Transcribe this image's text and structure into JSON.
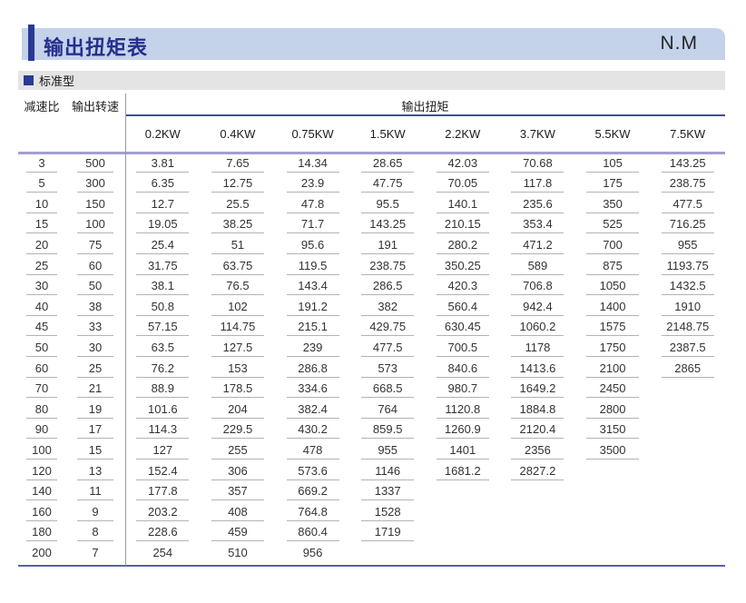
{
  "header": {
    "title": "输出扭矩表",
    "unit": "N.M"
  },
  "section": {
    "marker": "square-bullet-icon",
    "label": "标准型"
  },
  "colors": {
    "title_bar_bg": "#c4d2ea",
    "accent_navy": "#2b3a94",
    "section_bg": "#e4e4e4",
    "torque_rule": "#3d4da1",
    "header_border": "#a0a0d0",
    "cell_underline": "#b3b3b3",
    "table_bottom_border": "#5b60b0"
  },
  "table": {
    "col_ratio": "减速比",
    "col_speed": "输出转速",
    "torque_header": "输出扭矩",
    "power_columns": [
      "0.2KW",
      "0.4KW",
      "0.75KW",
      "1.5KW",
      "2.2KW",
      "3.7KW",
      "5.5KW",
      "7.5KW"
    ],
    "rows": [
      {
        "ratio": "3",
        "speed": "500",
        "torques": [
          "3.81",
          "7.65",
          "14.34",
          "28.65",
          "42.03",
          "70.68",
          "105",
          "143.25"
        ]
      },
      {
        "ratio": "5",
        "speed": "300",
        "torques": [
          "6.35",
          "12.75",
          "23.9",
          "47.75",
          "70.05",
          "117.8",
          "175",
          "238.75"
        ]
      },
      {
        "ratio": "10",
        "speed": "150",
        "torques": [
          "12.7",
          "25.5",
          "47.8",
          "95.5",
          "140.1",
          "235.6",
          "350",
          "477.5"
        ]
      },
      {
        "ratio": "15",
        "speed": "100",
        "torques": [
          "19.05",
          "38.25",
          "71.7",
          "143.25",
          "210.15",
          "353.4",
          "525",
          "716.25"
        ]
      },
      {
        "ratio": "20",
        "speed": "75",
        "torques": [
          "25.4",
          "51",
          "95.6",
          "191",
          "280.2",
          "471.2",
          "700",
          "955"
        ]
      },
      {
        "ratio": "25",
        "speed": "60",
        "torques": [
          "31.75",
          "63.75",
          "119.5",
          "238.75",
          "350.25",
          "589",
          "875",
          "1193.75"
        ]
      },
      {
        "ratio": "30",
        "speed": "50",
        "torques": [
          "38.1",
          "76.5",
          "143.4",
          "286.5",
          "420.3",
          "706.8",
          "1050",
          "1432.5"
        ]
      },
      {
        "ratio": "40",
        "speed": "38",
        "torques": [
          "50.8",
          "102",
          "191.2",
          "382",
          "560.4",
          "942.4",
          "1400",
          "1910"
        ]
      },
      {
        "ratio": "45",
        "speed": "33",
        "torques": [
          "57.15",
          "114.75",
          "215.1",
          "429.75",
          "630.45",
          "1060.2",
          "1575",
          "2148.75"
        ]
      },
      {
        "ratio": "50",
        "speed": "30",
        "torques": [
          "63.5",
          "127.5",
          "239",
          "477.5",
          "700.5",
          "1178",
          "1750",
          "2387.5"
        ]
      },
      {
        "ratio": "60",
        "speed": "25",
        "torques": [
          "76.2",
          "153",
          "286.8",
          "573",
          "840.6",
          "1413.6",
          "2100",
          "2865"
        ]
      },
      {
        "ratio": "70",
        "speed": "21",
        "torques": [
          "88.9",
          "178.5",
          "334.6",
          "668.5",
          "980.7",
          "1649.2",
          "2450",
          ""
        ]
      },
      {
        "ratio": "80",
        "speed": "19",
        "torques": [
          "101.6",
          "204",
          "382.4",
          "764",
          "1120.8",
          "1884.8",
          "2800",
          ""
        ]
      },
      {
        "ratio": "90",
        "speed": "17",
        "torques": [
          "114.3",
          "229.5",
          "430.2",
          "859.5",
          "1260.9",
          "2120.4",
          "3150",
          ""
        ]
      },
      {
        "ratio": "100",
        "speed": "15",
        "torques": [
          "127",
          "255",
          "478",
          "955",
          "1401",
          "2356",
          "3500",
          ""
        ]
      },
      {
        "ratio": "120",
        "speed": "13",
        "torques": [
          "152.4",
          "306",
          "573.6",
          "1146",
          "1681.2",
          "2827.2",
          "",
          ""
        ]
      },
      {
        "ratio": "140",
        "speed": "11",
        "torques": [
          "177.8",
          "357",
          "669.2",
          "1337",
          "",
          "",
          "",
          ""
        ]
      },
      {
        "ratio": "160",
        "speed": "9",
        "torques": [
          "203.2",
          "408",
          "764.8",
          "1528",
          "",
          "",
          "",
          ""
        ]
      },
      {
        "ratio": "180",
        "speed": "8",
        "torques": [
          "228.6",
          "459",
          "860.4",
          "1719",
          "",
          "",
          "",
          ""
        ]
      },
      {
        "ratio": "200",
        "speed": "7",
        "torques": [
          "254",
          "510",
          "956",
          "",
          "",
          "",
          "",
          ""
        ]
      }
    ]
  }
}
